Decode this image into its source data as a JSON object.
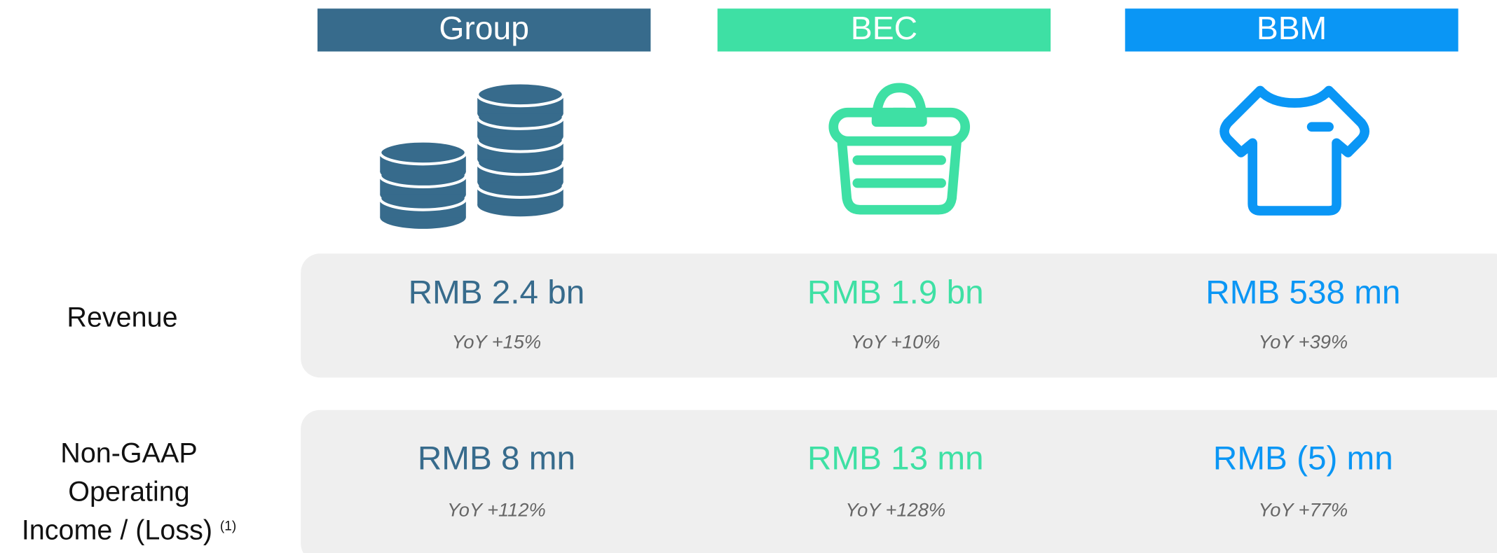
{
  "columns": [
    {
      "name": "Group",
      "color": "#376b8c"
    },
    {
      "name": "BEC",
      "color": "#3ee0a4"
    },
    {
      "name": "BBM",
      "color": "#0a96f5"
    }
  ],
  "rows": [
    {
      "label": [
        "Revenue"
      ],
      "cells": [
        {
          "value": "RMB 2.4 bn",
          "yoy": "YoY +15%"
        },
        {
          "value": "RMB 1.9 bn",
          "yoy": "YoY +10%"
        },
        {
          "value": "RMB 538 mn",
          "yoy": "YoY +39%"
        }
      ]
    },
    {
      "label": [
        "Non-GAAP",
        "Operating",
        "Income / (Loss)"
      ],
      "footnote": "(1)",
      "cells": [
        {
          "value": "RMB 8 mn",
          "yoy": "YoY +112%"
        },
        {
          "value": "RMB 13 mn",
          "yoy": "YoY +128%"
        },
        {
          "value": "RMB (5) mn",
          "yoy": "YoY +77%"
        }
      ]
    }
  ]
}
